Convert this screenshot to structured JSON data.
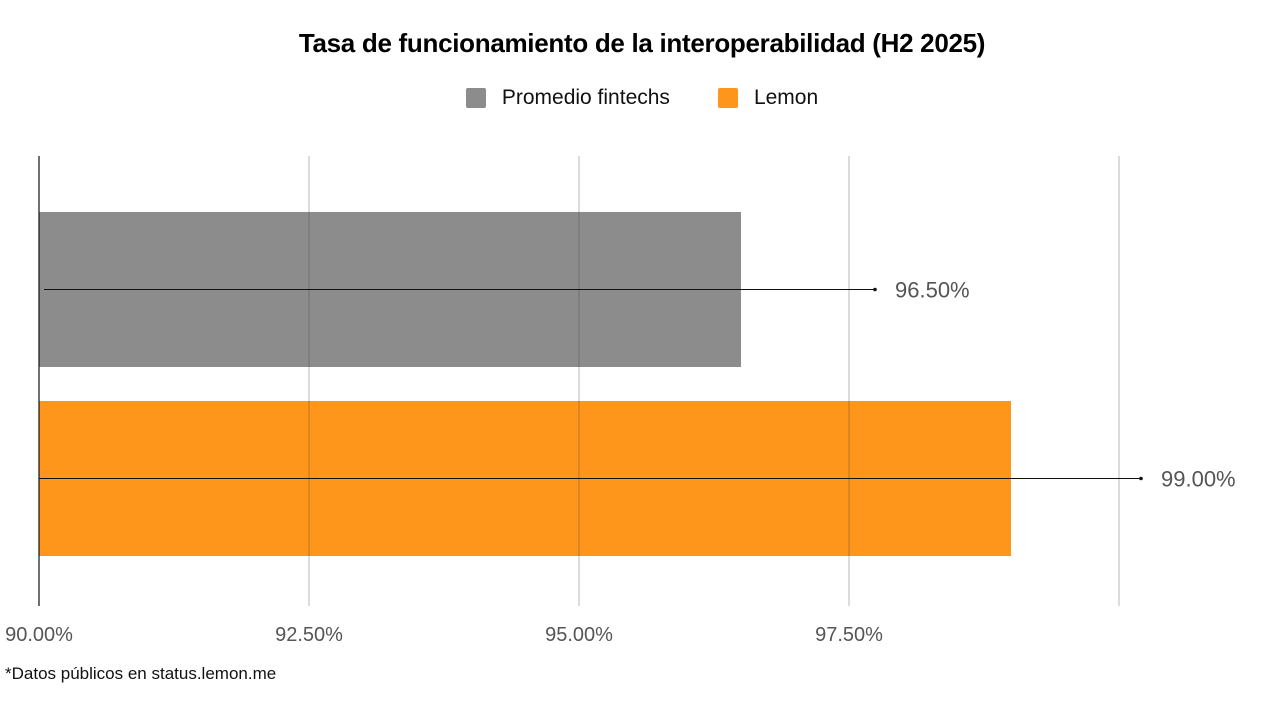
{
  "chart_data": {
    "type": "bar",
    "orientation": "horizontal",
    "title": "Tasa de funcionamiento de la interoperabilidad (H2 2025)",
    "series": [
      {
        "name": "Promedio fintechs",
        "value": 96.5,
        "label": "96.50%",
        "color": "#8c8c8c"
      },
      {
        "name": "Lemon",
        "value": 99.0,
        "label": "99.00%",
        "color": "#ff961c"
      }
    ],
    "xlim": [
      90,
      100
    ],
    "xticks": [
      {
        "value": 90,
        "label": "90.00%"
      },
      {
        "value": 92.5,
        "label": "92.50%"
      },
      {
        "value": 95,
        "label": "95.00%"
      },
      {
        "value": 97.5,
        "label": "97.50%"
      }
    ],
    "gridlines": [
      92.5,
      95,
      97.5,
      100
    ],
    "legend_position": "top-center",
    "xlabel": "",
    "ylabel": ""
  },
  "footnote": "*Datos públicos en status.lemon.me"
}
